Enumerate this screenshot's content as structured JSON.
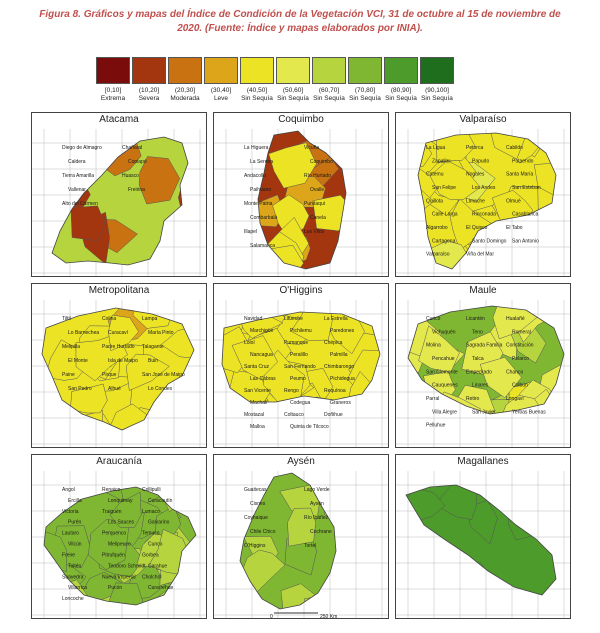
{
  "caption": {
    "line1": "Figura 8. Gráficos y mapas del Índice de Condición de la Vegetación VCI, 31 de octubre al 15 de noviembre de",
    "line2": "2020. (Fuente: Índice y mapas elaborados por INIA)."
  },
  "legend": [
    {
      "range": "[0,10]",
      "label": "Extrema",
      "color": "#7b0c0c"
    },
    {
      "range": "(10,20]",
      "label": "Severa",
      "color": "#a3350f"
    },
    {
      "range": "(20,30]",
      "label": "Moderada",
      "color": "#c87212"
    },
    {
      "range": "(30,40]",
      "label": "Leve",
      "color": "#dca51a"
    },
    {
      "range": "(40,50]",
      "label": "Sin Sequía",
      "color": "#ece324"
    },
    {
      "range": "(50,60]",
      "label": "Sin Sequía",
      "color": "#e3e84c"
    },
    {
      "range": "(60,70]",
      "label": "Sin Sequía",
      "color": "#b5d43d"
    },
    {
      "range": "(70,80]",
      "label": "Sin Sequía",
      "color": "#7fb632"
    },
    {
      "range": "(80,90]",
      "label": "Sin Sequía",
      "color": "#4d9b2a"
    },
    {
      "range": "(90,100]",
      "label": "Sin Sequía",
      "color": "#1f6e1d"
    }
  ],
  "regions": [
    {
      "name": "Atacama",
      "labels": [
        "Diego de Almagro",
        "Chañaral",
        "Caldera",
        "Copiapó",
        "Tierra Amarilla",
        "Huasco",
        "Vallenar",
        "Freirina",
        "Alto del Carmen"
      ]
    },
    {
      "name": "Coquimbo",
      "labels": [
        "La Higuera",
        "Vicuña",
        "La Serena",
        "Coquimbo",
        "Andacollo",
        "Río Hurtado",
        "Paihuano",
        "Ovalle",
        "Monte Patria",
        "Punitaqui",
        "Combarbalá",
        "Canela",
        "Illapel",
        "Los Vilos",
        "Salamanca"
      ]
    },
    {
      "name": "Valparaíso",
      "labels": [
        "La Ligua",
        "Petorca",
        "Cabildo",
        "Zapallar",
        "Papudo",
        "Putaendo",
        "Catemu",
        "Nogales",
        "Santa María",
        "San Felipe",
        "Los Andes",
        "San Esteban",
        "Quillota",
        "Limache",
        "Olmué",
        "Calle Larga",
        "Rinconada",
        "Casablanca",
        "Algarrobo",
        "El Quisco",
        "El Tabo",
        "Cartagena",
        "Santo Domingo",
        "San Antonio",
        "Valparaíso",
        "Viña del Mar"
      ]
    },
    {
      "name": "Metropolitana",
      "labels": [
        "Tiltil",
        "Colina",
        "Lampa",
        "Lo Barnechea",
        "Curacaví",
        "María Pinto",
        "Melipilla",
        "Padre Hurtado",
        "Talagante",
        "El Monte",
        "Isla de Maipo",
        "Buin",
        "Paine",
        "Pirque",
        "San José de Maipo",
        "San Pedro",
        "Alhué",
        "Lo Condes"
      ]
    },
    {
      "name": "O'Higgins",
      "labels": [
        "Navidad",
        "Litueche",
        "La Estrella",
        "Marchigüe",
        "Pichilemu",
        "Paredones",
        "Lolol",
        "Pumanque",
        "Chépica",
        "Nancagua",
        "Peralillo",
        "Palmilla",
        "Santa Cruz",
        "San Fernando",
        "Chimbarongo",
        "Las Cabras",
        "Peumo",
        "Pichidegua",
        "San Vicente",
        "Rengo",
        "Requínoa",
        "Machalí",
        "Codegua",
        "Graneros",
        "Mostazal",
        "Coltauco",
        "Doñihue",
        "Malloa",
        "Quinta de Tilcoco"
      ]
    },
    {
      "name": "Maule",
      "labels": [
        "Curicó",
        "Licantén",
        "Hualañé",
        "Vichuquén",
        "Teno",
        "Romeral",
        "Molina",
        "Sagrada Familia",
        "Constitución",
        "Pencahue",
        "Talca",
        "Pelarco",
        "San Clemente",
        "Empedrado",
        "Chanco",
        "Cauquenes",
        "Linares",
        "Colbún",
        "Parral",
        "Retiro",
        "Longaví",
        "Villa Alegre",
        "San Javier",
        "Yerbas Buenas",
        "Pelluhue"
      ]
    },
    {
      "name": "Araucanía",
      "labels": [
        "Angol",
        "Renaico",
        "Collipulli",
        "Ercilla",
        "Lonquimay",
        "Curacautín",
        "Victoria",
        "Traiguén",
        "Lumaco",
        "Purén",
        "Los Sauces",
        "Galvarino",
        "Lautaro",
        "Perquenco",
        "Temuco",
        "Vilcún",
        "Melipeuco",
        "Cunco",
        "Freire",
        "Pitrufquén",
        "Gorbea",
        "Toltén",
        "Teodoro Schmidt",
        "Carahue",
        "Saavedra",
        "Nueva Imperial",
        "Cholchol",
        "Villarrica",
        "Pucón",
        "Curarrehue",
        "Loncoche"
      ]
    },
    {
      "name": "Aysén",
      "labels": [
        "Guaitecas",
        "Lago Verde",
        "Cisnes",
        "Aysén",
        "Coyhaique",
        "Río Ibáñez",
        "Chile Chico",
        "Cochrane",
        "O'Higgins",
        "Tortel"
      ],
      "scale": "250 Km"
    },
    {
      "name": "Magallanes",
      "labels": []
    }
  ]
}
